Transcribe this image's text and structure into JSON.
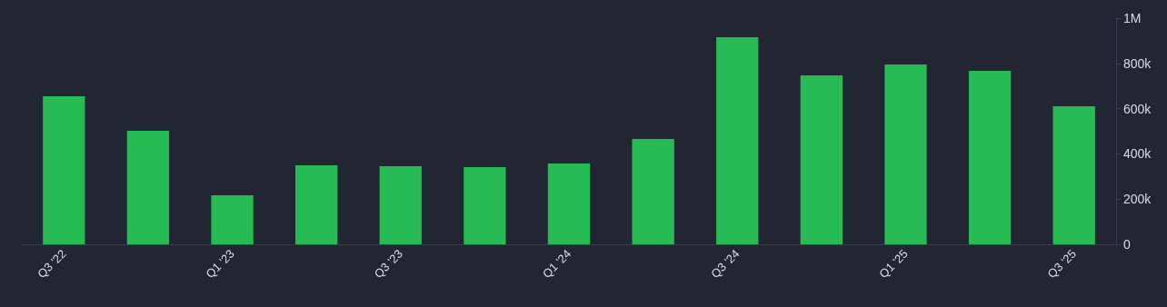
{
  "chart_data": {
    "type": "bar",
    "categories": [
      "Q3 '22",
      null,
      "Q1 '23",
      null,
      "Q3 '23",
      null,
      "Q1 '24",
      null,
      "Q3 '24",
      null,
      "Q1 '25",
      null,
      "Q3 '25"
    ],
    "values": [
      655000,
      502000,
      217000,
      349000,
      345000,
      341000,
      357000,
      466000,
      916000,
      747000,
      795000,
      767000,
      610000
    ],
    "color": "#27bb55",
    "ylim": [
      0,
      1000000
    ],
    "yticks": [
      0,
      {
        "value": 200000,
        "label": "200k"
      },
      {
        "value": 400000,
        "label": "400k"
      },
      {
        "value": 600000,
        "label": "600k"
      },
      {
        "value": 800000,
        "label": "800k"
      },
      {
        "value": 1000000,
        "label": "1M"
      }
    ],
    "grid": false
  }
}
